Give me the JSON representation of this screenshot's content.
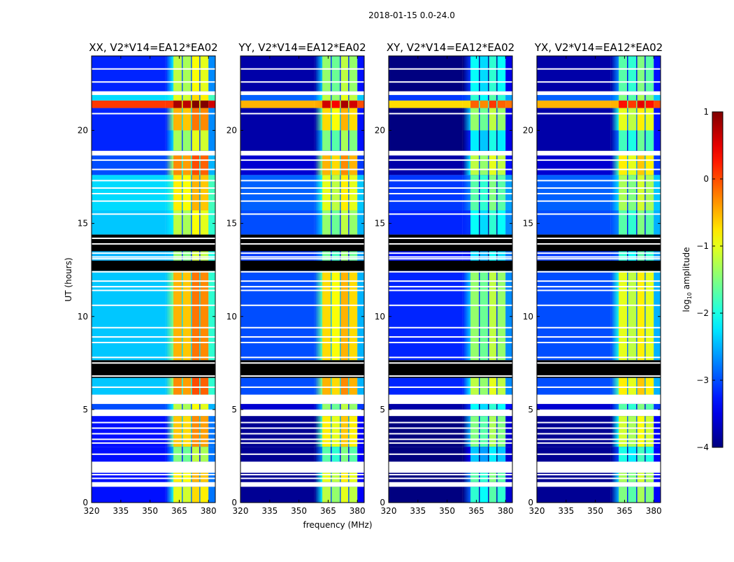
{
  "chart_data": {
    "type": "heatmap",
    "title": "2018-01-15 0.0-24.0",
    "xlabel": "frequency (MHz)",
    "ylabel": "UT (hours)",
    "xlim": [
      320,
      383.5
    ],
    "ylim": [
      0,
      24
    ],
    "xticks": [
      "320",
      "335",
      "350",
      "365",
      "380"
    ],
    "xtick_values": [
      320,
      335,
      350,
      365,
      380
    ],
    "yticks": [
      "0",
      "5",
      "10",
      "15",
      "20"
    ],
    "ytick_values": [
      0,
      5,
      10,
      15,
      20
    ],
    "colorbar": {
      "label_main": "log",
      "label_sub": "10",
      "label_rest": " amplitude",
      "range": [
        -4,
        1
      ],
      "colormap": "jet",
      "ticks": [
        "1",
        "0",
        "−1",
        "−2",
        "−3",
        "−4"
      ],
      "tick_values": [
        1,
        0,
        -1,
        -2,
        -3,
        -4
      ]
    },
    "frequency_regions_mhz": {
      "background": [
        320,
        358
      ],
      "rolloff": [
        358,
        362
      ],
      "bands": [
        [
          362,
          366.3
        ],
        [
          366.8,
          371
        ],
        [
          371.5,
          375.3
        ],
        [
          375.8,
          380
        ]
      ],
      "tail": [
        380,
        383.5
      ]
    },
    "time_segments": [
      {
        "t": [
          22.1,
          24.0
        ],
        "kind": "data",
        "bg": -3.2,
        "band": -1.2
      },
      {
        "t": [
          21.9,
          22.1
        ],
        "kind": "flagged"
      },
      {
        "t": [
          21.6,
          21.9
        ],
        "kind": "data",
        "bg": -2.3,
        "band": -1.0
      },
      {
        "t": [
          21.2,
          21.6
        ],
        "kind": "data",
        "bg": 0.1,
        "band": 0.8
      },
      {
        "t": [
          20.0,
          21.2
        ],
        "kind": "data",
        "bg": -3.2,
        "band": -0.5
      },
      {
        "t": [
          18.9,
          20.0
        ],
        "kind": "data",
        "bg": -3.2,
        "band": -1.3
      },
      {
        "t": [
          18.65,
          18.9
        ],
        "kind": "flagged"
      },
      {
        "t": [
          17.6,
          18.65
        ],
        "kind": "data",
        "bg": -3.0,
        "band": -0.3
      },
      {
        "t": [
          15.7,
          17.6
        ],
        "kind": "data",
        "bg": -2.3,
        "band": -0.8
      },
      {
        "t": [
          14.4,
          15.7
        ],
        "kind": "data",
        "bg": -2.4,
        "band": -1.2
      },
      {
        "t": [
          13.5,
          14.4
        ],
        "kind": "nodata"
      },
      {
        "t": [
          13.0,
          13.5
        ],
        "kind": "data",
        "bg": -2.5,
        "band": -1.4
      },
      {
        "t": [
          12.45,
          13.0
        ],
        "kind": "nodata"
      },
      {
        "t": [
          7.65,
          12.45
        ],
        "kind": "data",
        "bg": -2.4,
        "band": -0.5
      },
      {
        "t": [
          6.7,
          7.65
        ],
        "kind": "nodata"
      },
      {
        "t": [
          5.8,
          6.7
        ],
        "kind": "data",
        "bg": -2.4,
        "band": -0.3
      },
      {
        "t": [
          5.3,
          5.8
        ],
        "kind": "flagged"
      },
      {
        "t": [
          5.0,
          5.3
        ],
        "kind": "data",
        "bg": -3.0,
        "band": -1.2
      },
      {
        "t": [
          4.65,
          5.0
        ],
        "kind": "flagged"
      },
      {
        "t": [
          3.0,
          4.65
        ],
        "kind": "data",
        "bg": -3.3,
        "band": -0.6
      },
      {
        "t": [
          2.2,
          3.0
        ],
        "kind": "data",
        "bg": -3.3,
        "band": -1.5
      },
      {
        "t": [
          1.6,
          2.2
        ],
        "kind": "flagged"
      },
      {
        "t": [
          1.1,
          1.6
        ],
        "kind": "data",
        "bg": -3.3,
        "band": -0.8
      },
      {
        "t": [
          0.85,
          1.1
        ],
        "kind": "flagged"
      },
      {
        "t": [
          0.0,
          0.85
        ],
        "kind": "data",
        "bg": -3.3,
        "band": -1.0
      }
    ],
    "flagged_lines_hours": [
      23.3,
      22.6,
      20.9,
      18.4,
      17.9,
      17.3,
      16.9,
      16.6,
      16.2,
      15.5,
      14.2,
      13.9,
      13.4,
      13.2,
      13.1,
      12.4,
      11.9,
      11.6,
      11.4,
      10.6,
      9.4,
      8.9,
      8.6,
      7.8,
      7.5,
      6.8,
      6.2,
      4.3,
      4.0,
      3.7,
      3.4,
      3.2,
      2.6,
      1.5,
      1.3
    ],
    "panels": [
      {
        "title": "XX, V2*V14=EA12*EA02",
        "bg_offset": 0.0,
        "band_offset": 0.0,
        "band_shift": [
          0,
          -0.1,
          0.3,
          0.2
        ]
      },
      {
        "title": "YY, V2*V14=EA12*EA02",
        "bg_offset": -0.6,
        "band_offset": -0.2,
        "band_shift": [
          0,
          -0.2,
          0.2,
          0.0
        ]
      },
      {
        "title": "XY, V2*V14=EA12*EA02",
        "bg_offset": -0.8,
        "band_offset": -0.9,
        "band_shift": [
          0,
          -0.2,
          0.2,
          0.0
        ]
      },
      {
        "title": "YX, V2*V14=EA12*EA02",
        "bg_offset": -0.6,
        "band_offset": -0.5,
        "band_shift": [
          0,
          -0.2,
          0.2,
          0.0
        ]
      }
    ]
  }
}
